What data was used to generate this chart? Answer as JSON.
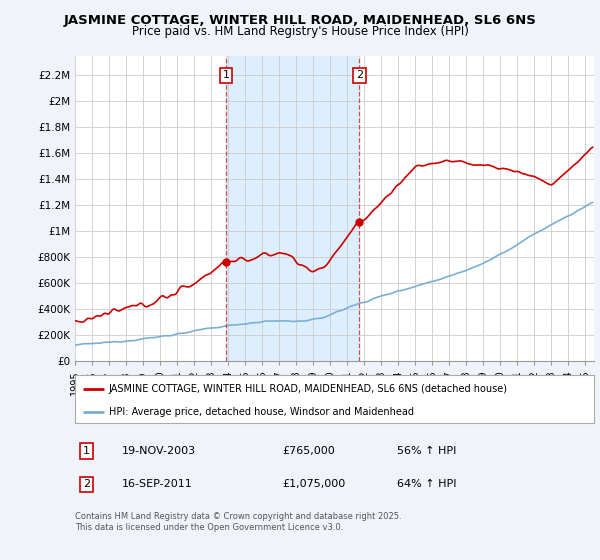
{
  "title": "JASMINE COTTAGE, WINTER HILL ROAD, MAIDENHEAD, SL6 6NS",
  "subtitle": "Price paid vs. HM Land Registry's House Price Index (HPI)",
  "title_fontsize": 9.5,
  "subtitle_fontsize": 8.5,
  "ylabel_ticks": [
    "£0",
    "£200K",
    "£400K",
    "£600K",
    "£800K",
    "£1M",
    "£1.2M",
    "£1.4M",
    "£1.6M",
    "£1.8M",
    "£2M",
    "£2.2M"
  ],
  "ytick_values": [
    0,
    200000,
    400000,
    600000,
    800000,
    1000000,
    1200000,
    1400000,
    1600000,
    1800000,
    2000000,
    2200000
  ],
  "ylim": [
    0,
    2350000
  ],
  "xlim_start": 1995.0,
  "xlim_end": 2025.5,
  "line1_color": "#cc0000",
  "line2_color": "#7aafd4",
  "line1_label": "JASMINE COTTAGE, WINTER HILL ROAD, MAIDENHEAD, SL6 6NS (detached house)",
  "line2_label": "HPI: Average price, detached house, Windsor and Maidenhead",
  "vline1_x": 2003.88,
  "vline2_x": 2011.71,
  "purchase1_date": "19-NOV-2003",
  "purchase1_price": "£765,000",
  "purchase1_hpi": "56% ↑ HPI",
  "purchase2_date": "16-SEP-2011",
  "purchase2_price": "£1,075,000",
  "purchase2_hpi": "64% ↑ HPI",
  "footer": "Contains HM Land Registry data © Crown copyright and database right 2025.\nThis data is licensed under the Open Government Licence v3.0.",
  "bg_color": "#f0f4fa",
  "plot_bg_color": "#ffffff",
  "grid_color": "#cccccc",
  "span_color": "#ddeeff"
}
